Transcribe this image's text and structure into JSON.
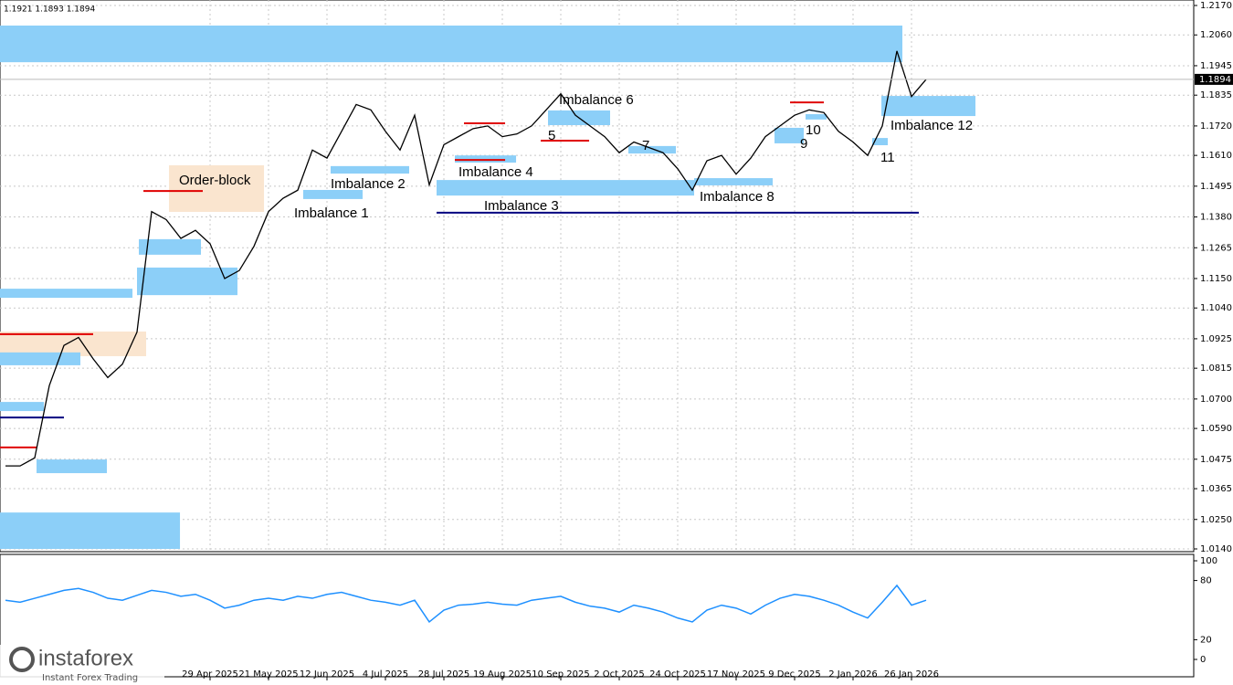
{
  "header": "1.1921 1.1893 1.1894",
  "logo": {
    "brand": "instaforex",
    "tagline": "Instant Forex Trading"
  },
  "chart_data": [
    {
      "type": "line",
      "color": "#000000",
      "last_price": {
        "value": 1.1894,
        "label": "1.1894"
      },
      "categories": [
        null,
        null,
        null,
        null,
        null,
        null,
        null,
        null,
        null,
        null,
        null,
        null,
        null,
        null,
        "29 Apr 2025",
        null,
        null,
        null,
        "21 May 2025",
        null,
        null,
        null,
        "12 Jun 2025",
        null,
        null,
        null,
        "4 Jul 2025",
        null,
        null,
        null,
        "28 Jul 2025",
        null,
        null,
        null,
        "19 Aug 2025",
        null,
        null,
        null,
        "10 Sep 2025",
        null,
        null,
        null,
        "2 Oct 2025",
        null,
        null,
        null,
        "24 Oct 2025",
        null,
        null,
        null,
        "17 Nov 2025",
        null,
        null,
        null,
        "9 Dec 2025",
        null,
        null,
        null,
        "2 Jan 2026",
        null,
        null,
        null,
        "26 Jan 2026",
        null
      ],
      "values": [
        1.045,
        1.045,
        1.048,
        1.075,
        1.09,
        1.093,
        1.085,
        1.078,
        1.083,
        1.095,
        1.14,
        1.137,
        1.13,
        1.133,
        1.128,
        1.115,
        1.118,
        1.127,
        1.14,
        1.145,
        1.148,
        1.163,
        1.16,
        1.17,
        1.18,
        1.178,
        1.17,
        1.163,
        1.176,
        1.15,
        1.165,
        1.168,
        1.171,
        1.172,
        1.168,
        1.169,
        1.172,
        1.178,
        1.184,
        1.176,
        1.172,
        1.168,
        1.162,
        1.166,
        1.164,
        1.162,
        1.156,
        1.148,
        1.159,
        1.161,
        1.154,
        1.16,
        1.168,
        1.172,
        1.176,
        1.178,
        1.177,
        1.17,
        1.166,
        1.161,
        1.172,
        1.2,
        1.183,
        1.1894
      ],
      "ylim": [
        1.014,
        1.217
      ],
      "yticks": [
        {
          "value": 1.014,
          "label": "1.0140"
        },
        {
          "value": 1.025,
          "label": "1.0250"
        },
        1.0365,
        1.0475,
        {
          "value": 1.059,
          "label": "1.0590"
        },
        {
          "value": 1.07,
          "label": "1.0700"
        },
        1.0815,
        1.0925,
        {
          "value": 1.104,
          "label": "1.1040"
        },
        {
          "value": 1.115,
          "label": "1.1150"
        },
        1.1265,
        {
          "value": 1.138,
          "label": "1.1380"
        },
        1.1495,
        {
          "value": 1.161,
          "label": "1.1610"
        },
        {
          "value": 1.172,
          "label": "1.1720"
        },
        1.1835,
        1.1945,
        {
          "value": 1.206,
          "label": "1.2060"
        },
        {
          "value": 1.217,
          "label": "1.2170"
        }
      ],
      "grid": true,
      "zones": [
        {
          "low": 1.1958,
          "high": 1.2095,
          "from": -0.375,
          "to": 61.375,
          "color": "#8ccff8"
        },
        {
          "low": 1.1757,
          "high": 1.1832,
          "from": 59.94,
          "to": 66.375,
          "color": "#8ccff8",
          "label": "Imbalance 12"
        },
        {
          "low": 1.146,
          "high": 1.1518,
          "from": 29.5,
          "to": 47.125,
          "color": "#8ccff8",
          "label": "Imbalance 3"
        },
        {
          "low": 1.1498,
          "high": 1.1525,
          "from": 47.125,
          "to": 52.5,
          "color": "#8ccff8",
          "label": "Imbalance 8"
        },
        {
          "low": 1.1542,
          "high": 1.157,
          "from": 22.25,
          "to": 27.625,
          "color": "#8ccff8",
          "label": "Imbalance 2"
        },
        {
          "low": 1.1447,
          "high": 1.1481,
          "from": 20.375,
          "to": 24.44,
          "color": "#8ccff8",
          "label": "Imbalance 1"
        },
        {
          "low": 1.1583,
          "high": 1.161,
          "from": 30.75,
          "to": 34.94,
          "color": "#8ccff8",
          "label": "Imbalance 4"
        },
        {
          "low": 1.1723,
          "high": 1.1778,
          "from": 37.125,
          "to": 41.375,
          "color": "#8ccff8",
          "label": "Imbalance 6"
        },
        {
          "low": 1.1617,
          "high": 1.1645,
          "from": 42.625,
          "to": 45.875,
          "color": "#8ccff8",
          "label": "7"
        },
        {
          "low": 1.1655,
          "high": 1.1713,
          "from": 52.625,
          "to": 54.625,
          "color": "#8ccff8",
          "label": "9"
        },
        {
          "low": 1.1744,
          "high": 1.1764,
          "from": 54.75,
          "to": 56.19,
          "color": "#8ccff8",
          "label": "10"
        },
        {
          "low": 1.1648,
          "high": 1.1675,
          "from": 59.31,
          "to": 60.375,
          "color": "#8ccff8",
          "label": "11"
        },
        {
          "low": 1.1399,
          "high": 1.1573,
          "from": 11.19,
          "to": 17.69,
          "color": "#fae5cf",
          "label": "Order-block"
        },
        {
          "low": 1.086,
          "high": 1.0952,
          "from": -0.375,
          "to": 9.625,
          "color": "#fae5cf"
        },
        {
          "low": 1.1239,
          "high": 1.1297,
          "from": 9.125,
          "to": 13.375,
          "color": "#8ccff8"
        },
        {
          "low": 1.1088,
          "high": 1.1191,
          "from": 9,
          "to": 15.875,
          "color": "#8ccff8"
        },
        {
          "low": 1.1078,
          "high": 1.1112,
          "from": -0.375,
          "to": 8.69,
          "color": "#8ccff8"
        },
        {
          "low": 1.0826,
          "high": 1.0874,
          "from": -0.375,
          "to": 5.125,
          "color": "#8ccff8"
        },
        {
          "low": 1.0655,
          "high": 1.0689,
          "from": -0.375,
          "to": 2.625,
          "color": "#8ccff8"
        },
        {
          "low": 1.0423,
          "high": 1.0474,
          "from": 2.125,
          "to": 6.94,
          "color": "#8ccff8"
        },
        {
          "low": 1.014,
          "high": 1.0276,
          "from": -0.375,
          "to": 11.94,
          "color": "#8ccff8"
        }
      ],
      "levels": [
        {
          "price": 1.1396,
          "from": 29.5,
          "to": 62.5,
          "color": "#000080"
        },
        {
          "price": 1.0631,
          "from": -0.375,
          "to": 4,
          "color": "#000080"
        },
        {
          "price": 1.0519,
          "from": -0.375,
          "to": 2.125,
          "color": "#e00000"
        },
        {
          "price": 1.0942,
          "from": -0.375,
          "to": 6,
          "color": "#e00000"
        },
        {
          "price": 1.1477,
          "from": 9.44,
          "to": 13.5,
          "color": "#e00000"
        },
        {
          "price": 1.173,
          "from": 31.375,
          "to": 34.19,
          "color": "#e00000"
        },
        {
          "price": 1.1593,
          "from": 30.75,
          "to": 34.19,
          "color": "#e00000"
        },
        {
          "price": 1.1665,
          "from": 36.625,
          "to": 39.94,
          "color": "#e00000",
          "label": "5"
        },
        {
          "price": 1.1808,
          "from": 53.69,
          "to": 56,
          "color": "#e00000"
        }
      ]
    },
    {
      "type": "line",
      "color": "#1e90ff",
      "values": [
        60,
        58,
        62,
        66,
        70,
        72,
        68,
        62,
        60,
        65,
        70,
        68,
        64,
        66,
        60,
        52,
        55,
        60,
        62,
        60,
        64,
        62,
        66,
        68,
        64,
        60,
        58,
        55,
        60,
        38,
        50,
        55,
        56,
        58,
        56,
        55,
        60,
        62,
        64,
        58,
        54,
        52,
        48,
        55,
        52,
        48,
        42,
        38,
        50,
        55,
        52,
        46,
        55,
        62,
        66,
        64,
        60,
        55,
        48,
        42,
        58,
        75,
        55,
        60
      ],
      "ylim": [
        0,
        100
      ],
      "yticks": [
        0,
        20,
        80,
        100
      ]
    }
  ]
}
